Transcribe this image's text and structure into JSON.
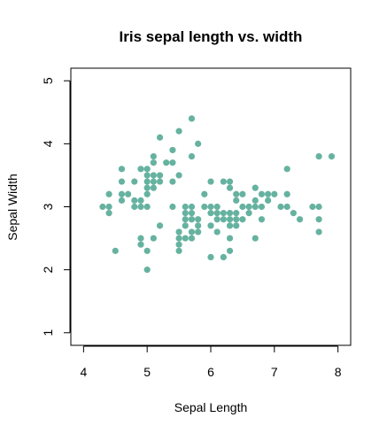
{
  "chart_data": {
    "type": "scatter",
    "title": "Iris sepal length vs. width",
    "xlabel": "Sepal Length",
    "ylabel": "Sepal Width",
    "xlim": [
      3.8,
      8.2
    ],
    "ylim": [
      0.8,
      5.2
    ],
    "xticks": [
      4,
      5,
      6,
      7,
      8
    ],
    "yticks": [
      1,
      2,
      3,
      4,
      5
    ],
    "grid": false,
    "point_color": "#66B2A0",
    "points": [
      [
        4.3,
        3.0
      ],
      [
        4.4,
        2.9
      ],
      [
        4.4,
        3.0
      ],
      [
        4.4,
        3.2
      ],
      [
        4.5,
        2.3
      ],
      [
        4.6,
        3.1
      ],
      [
        4.6,
        3.2
      ],
      [
        4.6,
        3.4
      ],
      [
        4.6,
        3.6
      ],
      [
        4.7,
        3.2
      ],
      [
        4.8,
        3.0
      ],
      [
        4.8,
        3.1
      ],
      [
        4.8,
        3.4
      ],
      [
        4.9,
        2.4
      ],
      [
        4.9,
        2.5
      ],
      [
        4.9,
        3.0
      ],
      [
        4.9,
        3.1
      ],
      [
        4.9,
        3.6
      ],
      [
        5.0,
        2.0
      ],
      [
        5.0,
        2.3
      ],
      [
        5.0,
        3.0
      ],
      [
        5.0,
        3.2
      ],
      [
        5.0,
        3.3
      ],
      [
        5.0,
        3.4
      ],
      [
        5.0,
        3.5
      ],
      [
        5.0,
        3.6
      ],
      [
        5.1,
        2.5
      ],
      [
        5.1,
        3.3
      ],
      [
        5.1,
        3.4
      ],
      [
        5.1,
        3.5
      ],
      [
        5.1,
        3.7
      ],
      [
        5.1,
        3.8
      ],
      [
        5.2,
        2.7
      ],
      [
        5.2,
        3.4
      ],
      [
        5.2,
        3.5
      ],
      [
        5.2,
        4.1
      ],
      [
        5.3,
        3.7
      ],
      [
        5.4,
        3.0
      ],
      [
        5.4,
        3.4
      ],
      [
        5.4,
        3.7
      ],
      [
        5.4,
        3.9
      ],
      [
        5.5,
        2.3
      ],
      [
        5.5,
        2.4
      ],
      [
        5.5,
        2.5
      ],
      [
        5.5,
        2.6
      ],
      [
        5.5,
        3.5
      ],
      [
        5.5,
        4.2
      ],
      [
        5.6,
        2.5
      ],
      [
        5.6,
        2.7
      ],
      [
        5.6,
        2.8
      ],
      [
        5.6,
        2.9
      ],
      [
        5.6,
        3.0
      ],
      [
        5.7,
        2.5
      ],
      [
        5.7,
        2.6
      ],
      [
        5.7,
        2.8
      ],
      [
        5.7,
        2.9
      ],
      [
        5.7,
        3.0
      ],
      [
        5.7,
        3.8
      ],
      [
        5.7,
        4.4
      ],
      [
        5.8,
        2.6
      ],
      [
        5.8,
        2.7
      ],
      [
        5.8,
        2.8
      ],
      [
        5.8,
        4.0
      ],
      [
        5.9,
        3.0
      ],
      [
        5.9,
        3.2
      ],
      [
        6.0,
        2.2
      ],
      [
        6.0,
        2.7
      ],
      [
        6.0,
        2.9
      ],
      [
        6.0,
        3.0
      ],
      [
        6.0,
        3.4
      ],
      [
        6.1,
        2.6
      ],
      [
        6.1,
        2.8
      ],
      [
        6.1,
        2.9
      ],
      [
        6.1,
        3.0
      ],
      [
        6.2,
        2.2
      ],
      [
        6.2,
        2.8
      ],
      [
        6.2,
        2.9
      ],
      [
        6.2,
        3.4
      ],
      [
        6.3,
        2.3
      ],
      [
        6.3,
        2.5
      ],
      [
        6.3,
        2.7
      ],
      [
        6.3,
        2.8
      ],
      [
        6.3,
        2.9
      ],
      [
        6.3,
        3.3
      ],
      [
        6.3,
        3.4
      ],
      [
        6.4,
        2.7
      ],
      [
        6.4,
        2.8
      ],
      [
        6.4,
        2.9
      ],
      [
        6.4,
        3.1
      ],
      [
        6.4,
        3.2
      ],
      [
        6.5,
        2.8
      ],
      [
        6.5,
        3.0
      ],
      [
        6.5,
        3.2
      ],
      [
        6.6,
        2.9
      ],
      [
        6.6,
        3.0
      ],
      [
        6.7,
        2.5
      ],
      [
        6.7,
        3.0
      ],
      [
        6.7,
        3.1
      ],
      [
        6.7,
        3.3
      ],
      [
        6.8,
        2.8
      ],
      [
        6.8,
        3.0
      ],
      [
        6.8,
        3.2
      ],
      [
        6.9,
        3.1
      ],
      [
        6.9,
        3.2
      ],
      [
        7.0,
        3.2
      ],
      [
        7.1,
        3.0
      ],
      [
        7.2,
        3.0
      ],
      [
        7.2,
        3.2
      ],
      [
        7.2,
        3.6
      ],
      [
        7.3,
        2.9
      ],
      [
        7.4,
        2.8
      ],
      [
        7.6,
        3.0
      ],
      [
        7.7,
        2.6
      ],
      [
        7.7,
        2.8
      ],
      [
        7.7,
        3.0
      ],
      [
        7.7,
        3.8
      ],
      [
        7.9,
        3.8
      ]
    ]
  }
}
